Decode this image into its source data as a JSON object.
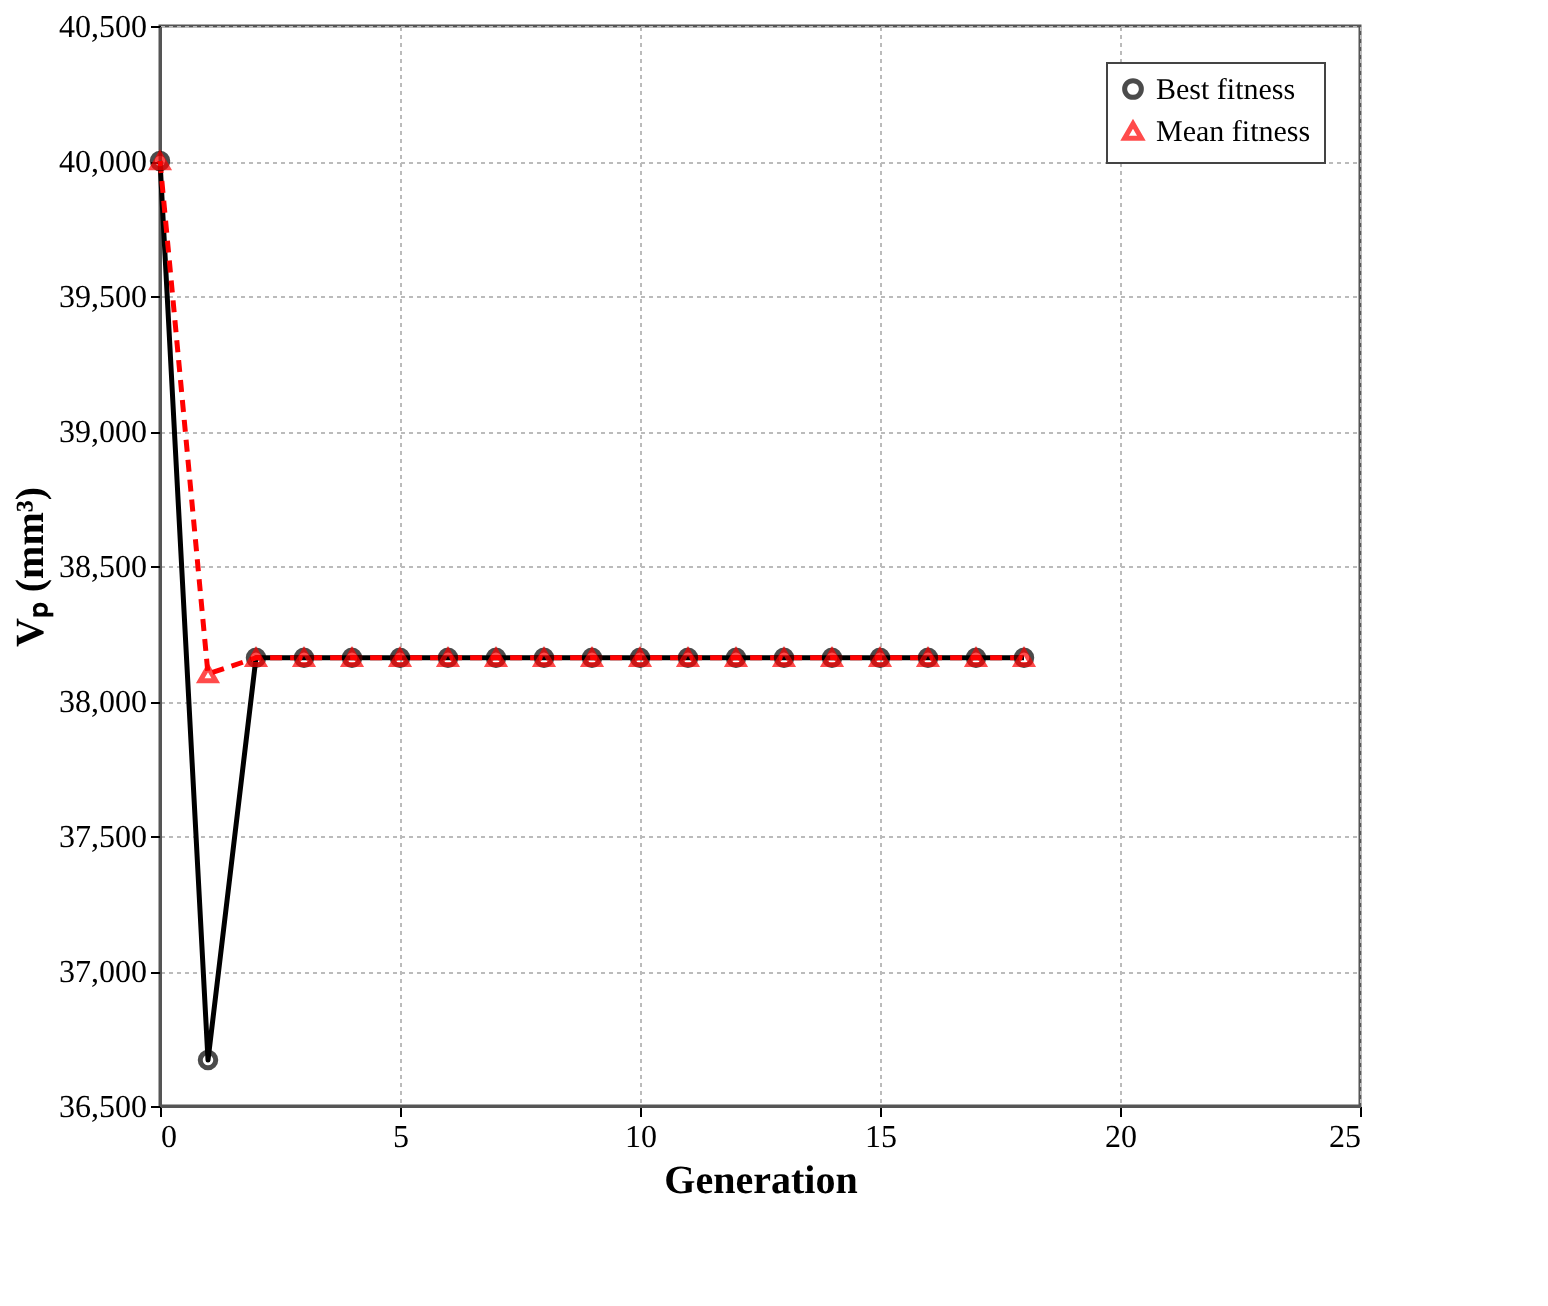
{
  "chart_data": {
    "type": "line",
    "xlabel": "Generation",
    "ylabel": "Vₚ (mm³)",
    "x": [
      0,
      1,
      2,
      3,
      4,
      5,
      6,
      7,
      8,
      9,
      10,
      11,
      12,
      13,
      14,
      15,
      16,
      17,
      18
    ],
    "series": [
      {
        "name": "Best fitness",
        "color": "#000000",
        "marker": "circle",
        "line_style": "solid",
        "values": [
          40000,
          36670,
          38160,
          38160,
          38160,
          38160,
          38160,
          38160,
          38160,
          38160,
          38160,
          38160,
          38160,
          38160,
          38160,
          38160,
          38160,
          38160,
          38160
        ]
      },
      {
        "name": "Mean fitness",
        "color": "#ff0000",
        "marker": "triangle",
        "line_style": "dashed",
        "values": [
          40000,
          38100,
          38160,
          38160,
          38160,
          38160,
          38160,
          38160,
          38160,
          38160,
          38160,
          38160,
          38160,
          38160,
          38160,
          38160,
          38160,
          38160,
          38160
        ]
      }
    ],
    "xlim": [
      0,
      25
    ],
    "xticks": [
      0,
      5,
      10,
      15,
      20,
      25
    ],
    "ylim": [
      36500,
      40500
    ],
    "yticks": [
      {
        "value": 36500,
        "label": "36,500"
      },
      {
        "value": 37000,
        "label": "37,000"
      },
      {
        "value": 37500,
        "label": "37,500"
      },
      {
        "value": 38000,
        "label": "38,000"
      },
      {
        "value": 38500,
        "label": "38,500"
      },
      {
        "value": 39000,
        "label": "39,000"
      },
      {
        "value": 39500,
        "label": "39,500"
      },
      {
        "value": 40000,
        "label": "40,000"
      },
      {
        "value": 40500,
        "label": "40,500"
      }
    ],
    "grid": true,
    "legend": "top right"
  }
}
